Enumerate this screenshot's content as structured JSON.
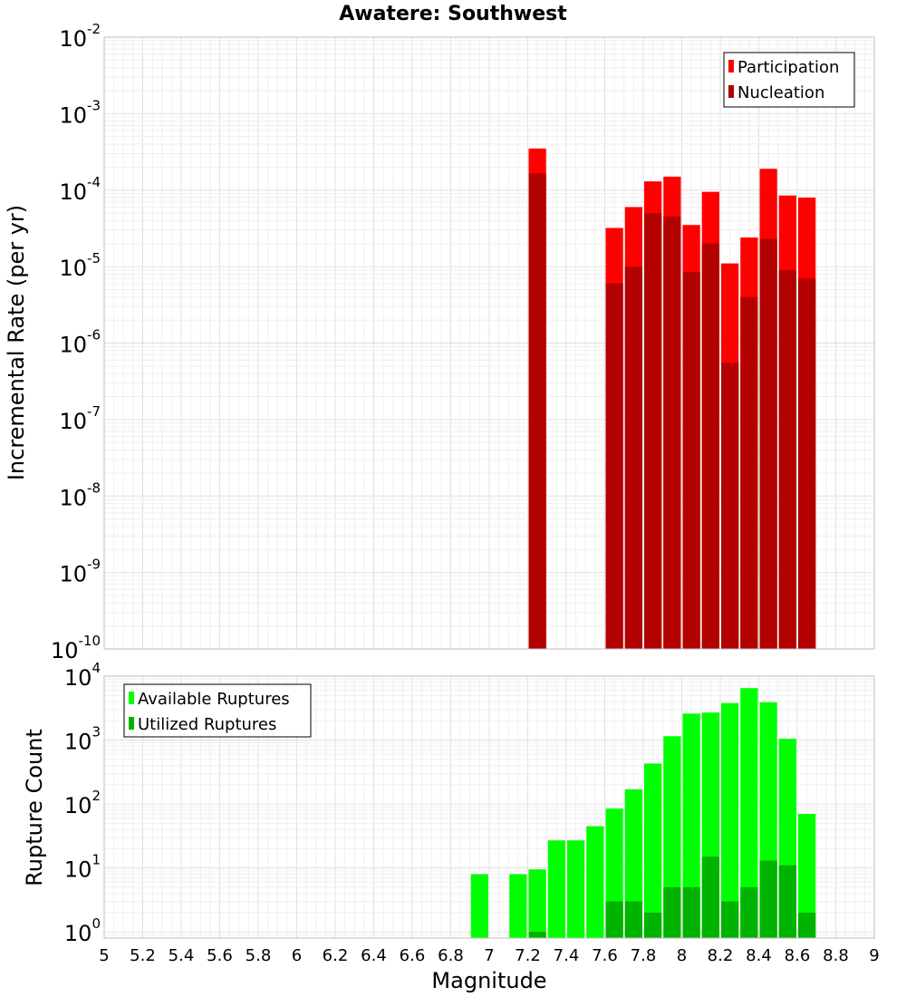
{
  "chart_data": [
    {
      "type": "bar",
      "title": "Awatere: Southwest",
      "xlabel": "",
      "ylabel": "Incremental Rate (per yr)",
      "yscale": "log",
      "ylim": [
        1e-10,
        0.01
      ],
      "xlim": [
        5,
        9
      ],
      "bin_width": 0.1,
      "y_tick_base": "10",
      "y_ticks": [
        {
          "value": 1e-10,
          "exp": "-10"
        },
        {
          "value": 1e-09,
          "exp": "-9"
        },
        {
          "value": 1e-08,
          "exp": "-8"
        },
        {
          "value": 1e-07,
          "exp": "-7"
        },
        {
          "value": 1e-06,
          "exp": "-6"
        },
        {
          "value": 1e-05,
          "exp": "-5"
        },
        {
          "value": 0.0001,
          "exp": "-4"
        },
        {
          "value": 0.001,
          "exp": "-3"
        },
        {
          "value": 0.01,
          "exp": "-2"
        }
      ],
      "legend_position": "top-right",
      "series": [
        {
          "name": "Participation",
          "color": "#ff0000",
          "points": [
            {
              "x": 7.25,
              "y": 0.00035
            },
            {
              "x": 7.65,
              "y": 3.2e-05
            },
            {
              "x": 7.75,
              "y": 6e-05
            },
            {
              "x": 7.85,
              "y": 0.00013
            },
            {
              "x": 7.95,
              "y": 0.00015
            },
            {
              "x": 8.05,
              "y": 3.5e-05
            },
            {
              "x": 8.15,
              "y": 9.5e-05
            },
            {
              "x": 8.25,
              "y": 1.1e-05
            },
            {
              "x": 8.35,
              "y": 2.4e-05
            },
            {
              "x": 8.45,
              "y": 0.00019
            },
            {
              "x": 8.55,
              "y": 8.5e-05
            },
            {
              "x": 8.65,
              "y": 8e-05
            }
          ]
        },
        {
          "name": "Nucleation",
          "color": "#b30000",
          "points": [
            {
              "x": 7.25,
              "y": 0.000165
            },
            {
              "x": 7.65,
              "y": 6e-06
            },
            {
              "x": 7.75,
              "y": 1e-05
            },
            {
              "x": 7.85,
              "y": 5e-05
            },
            {
              "x": 7.95,
              "y": 4.5e-05
            },
            {
              "x": 8.05,
              "y": 8.5e-06
            },
            {
              "x": 8.15,
              "y": 2e-05
            },
            {
              "x": 8.25,
              "y": 5.5e-07
            },
            {
              "x": 8.35,
              "y": 4e-06
            },
            {
              "x": 8.45,
              "y": 2.3e-05
            },
            {
              "x": 8.55,
              "y": 9e-06
            },
            {
              "x": 8.65,
              "y": 7e-06
            }
          ]
        }
      ]
    },
    {
      "type": "bar",
      "title": "",
      "xlabel": "Magnitude",
      "ylabel": "Rupture Count",
      "yscale": "log",
      "ylim": [
        0.8,
        10000
      ],
      "xlim": [
        5,
        9
      ],
      "bin_width": 0.1,
      "y_tick_base": "10",
      "y_ticks": [
        {
          "value": 1,
          "exp": "0"
        },
        {
          "value": 10,
          "exp": "1"
        },
        {
          "value": 100,
          "exp": "2"
        },
        {
          "value": 1000,
          "exp": "3"
        },
        {
          "value": 10000,
          "exp": "4"
        }
      ],
      "x_ticks": [
        "5",
        "5.2",
        "5.4",
        "5.6",
        "5.8",
        "6",
        "6.2",
        "6.4",
        "6.6",
        "6.8",
        "7",
        "7.2",
        "7.4",
        "7.6",
        "7.8",
        "8",
        "8.2",
        "8.4",
        "8.6",
        "8.8",
        "9"
      ],
      "legend_position": "top-left",
      "series": [
        {
          "name": "Available Ruptures",
          "color": "#00ff00",
          "points": [
            {
              "x": 6.95,
              "y": 8
            },
            {
              "x": 7.15,
              "y": 8
            },
            {
              "x": 7.25,
              "y": 9.5
            },
            {
              "x": 7.35,
              "y": 27
            },
            {
              "x": 7.45,
              "y": 27
            },
            {
              "x": 7.55,
              "y": 45
            },
            {
              "x": 7.65,
              "y": 85
            },
            {
              "x": 7.75,
              "y": 170
            },
            {
              "x": 7.85,
              "y": 430
            },
            {
              "x": 7.95,
              "y": 1150
            },
            {
              "x": 8.05,
              "y": 2600
            },
            {
              "x": 8.15,
              "y": 2700
            },
            {
              "x": 8.25,
              "y": 3800
            },
            {
              "x": 8.35,
              "y": 6500
            },
            {
              "x": 8.45,
              "y": 3900
            },
            {
              "x": 8.55,
              "y": 1050
            },
            {
              "x": 8.65,
              "y": 70
            }
          ]
        },
        {
          "name": "Utilized Ruptures",
          "color": "#00b300",
          "points": [
            {
              "x": 7.25,
              "y": 1
            },
            {
              "x": 7.65,
              "y": 3
            },
            {
              "x": 7.75,
              "y": 3
            },
            {
              "x": 7.85,
              "y": 2
            },
            {
              "x": 7.95,
              "y": 5
            },
            {
              "x": 8.05,
              "y": 5
            },
            {
              "x": 8.15,
              "y": 15
            },
            {
              "x": 8.25,
              "y": 3
            },
            {
              "x": 8.35,
              "y": 5
            },
            {
              "x": 8.45,
              "y": 13
            },
            {
              "x": 8.55,
              "y": 11
            },
            {
              "x": 8.65,
              "y": 2
            }
          ]
        }
      ]
    }
  ]
}
